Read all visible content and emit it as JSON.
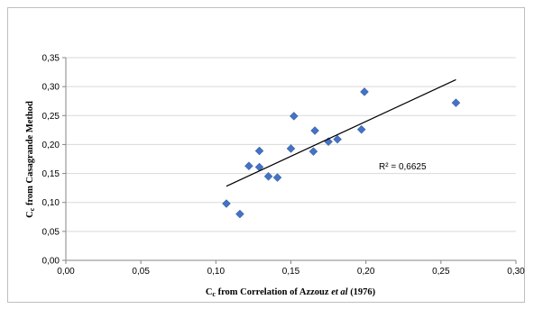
{
  "chart_data": {
    "type": "scatter",
    "title": "",
    "xlabel_parts": {
      "symbol": "C",
      "subscript": "c",
      "prefix": " from Correlation of Azzouz ",
      "italic": "et al",
      "suffix": " (1976)"
    },
    "ylabel_parts": {
      "symbol": "C",
      "subscript": "c",
      "rest": " from Casagrande Method"
    },
    "xlim": [
      0,
      0.3
    ],
    "ylim": [
      0,
      0.35
    ],
    "x_ticks": [
      0,
      0.05,
      0.1,
      0.15,
      0.2,
      0.25,
      0.3
    ],
    "y_ticks": [
      0,
      0.05,
      0.1,
      0.15,
      0.2,
      0.25,
      0.3,
      0.35
    ],
    "x_tick_labels": [
      "0,00",
      "0,05",
      "0,10",
      "0,15",
      "0,20",
      "0,25",
      "0,30"
    ],
    "y_tick_labels": [
      "0,00",
      "0,05",
      "0,10",
      "0,15",
      "0,20",
      "0,25",
      "0,30",
      "0,35"
    ],
    "grid": "horizontal",
    "marker_color": "#4472c4",
    "trend_color": "#000000",
    "points": [
      {
        "x": 0.107,
        "y": 0.098
      },
      {
        "x": 0.116,
        "y": 0.08
      },
      {
        "x": 0.122,
        "y": 0.163
      },
      {
        "x": 0.129,
        "y": 0.189
      },
      {
        "x": 0.129,
        "y": 0.161
      },
      {
        "x": 0.135,
        "y": 0.145
      },
      {
        "x": 0.141,
        "y": 0.143
      },
      {
        "x": 0.15,
        "y": 0.193
      },
      {
        "x": 0.152,
        "y": 0.249
      },
      {
        "x": 0.165,
        "y": 0.188
      },
      {
        "x": 0.166,
        "y": 0.224
      },
      {
        "x": 0.175,
        "y": 0.205
      },
      {
        "x": 0.181,
        "y": 0.209
      },
      {
        "x": 0.197,
        "y": 0.226
      },
      {
        "x": 0.199,
        "y": 0.291
      },
      {
        "x": 0.26,
        "y": 0.272
      }
    ],
    "trendline": {
      "type": "linear",
      "x_range": [
        0.107,
        0.26
      ],
      "y_start": 0.128,
      "y_end": 0.312,
      "r2_label": "R² = 0,6625"
    }
  }
}
